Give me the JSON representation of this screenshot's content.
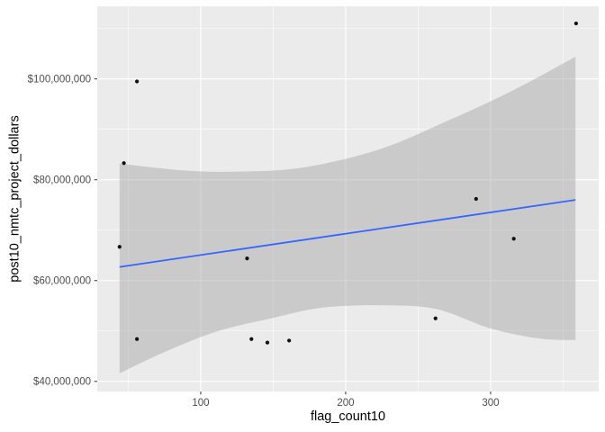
{
  "figure": {
    "background": "#FFFFFF"
  },
  "chart_data": {
    "type": "scatter",
    "title": "",
    "xlabel": "flag_count10",
    "ylabel": "post10_nmtc_project_dollars",
    "legend": "none",
    "grid": "on",
    "panel_background": "#EBEBEB",
    "grid_color": "#FFFFFF",
    "point_color": "#111111",
    "smooth_line_color": "#3366FF",
    "band_color": "rgba(153,153,153,0.40)",
    "tick_label_color": "#4D4D4D",
    "axis_title_color": "#000000",
    "tick_mark_color": "#333333",
    "x_domain": [
      28.6,
      374.6
    ],
    "y_domain": [
      38000000,
      114400000
    ],
    "x_ticks": [
      {
        "value": 100,
        "label": "100"
      },
      {
        "value": 200,
        "label": "200"
      },
      {
        "value": 300,
        "label": "300"
      }
    ],
    "x_minor_ticks": [
      50,
      150,
      250,
      350
    ],
    "y_ticks": [
      {
        "value": 40000000,
        "label": "$40,000,000"
      },
      {
        "value": 60000000,
        "label": "$60,000,000"
      },
      {
        "value": 80000000,
        "label": "$80,000,000"
      },
      {
        "value": 100000000,
        "label": "$100,000,000"
      }
    ],
    "y_minor_ticks": [
      50000000,
      70000000,
      90000000,
      110000000
    ],
    "points": [
      {
        "x": 56,
        "y": 99500000
      },
      {
        "x": 359,
        "y": 111000000
      },
      {
        "x": 47,
        "y": 83300000
      },
      {
        "x": 290,
        "y": 76200000
      },
      {
        "x": 44,
        "y": 66700000
      },
      {
        "x": 316,
        "y": 68300000
      },
      {
        "x": 132,
        "y": 64400000
      },
      {
        "x": 56,
        "y": 48400000
      },
      {
        "x": 135,
        "y": 48400000
      },
      {
        "x": 146,
        "y": 47700000
      },
      {
        "x": 161,
        "y": 48100000
      },
      {
        "x": 262,
        "y": 52500000
      }
    ],
    "smooth": {
      "method": "lm",
      "x": [
        44,
        358.6
      ],
      "y": [
        62700000,
        76000000
      ]
    },
    "confidence_band": {
      "upper": [
        [
          44,
          83200000
        ],
        [
          86,
          81900000
        ],
        [
          123,
          81600000
        ],
        [
          170,
          82400000
        ],
        [
          223,
          86000000
        ],
        [
          272,
          91900000
        ],
        [
          316,
          97800000
        ],
        [
          358.6,
          104400000
        ]
      ],
      "lower": [
        [
          44,
          41600000
        ],
        [
          74,
          45700000
        ],
        [
          111,
          49900000
        ],
        [
          150,
          52600000
        ],
        [
          183,
          54600000
        ],
        [
          223,
          55100000
        ],
        [
          262,
          54400000
        ],
        [
          300,
          50500000
        ],
        [
          334,
          48500000
        ],
        [
          358.6,
          48200000
        ]
      ]
    }
  }
}
